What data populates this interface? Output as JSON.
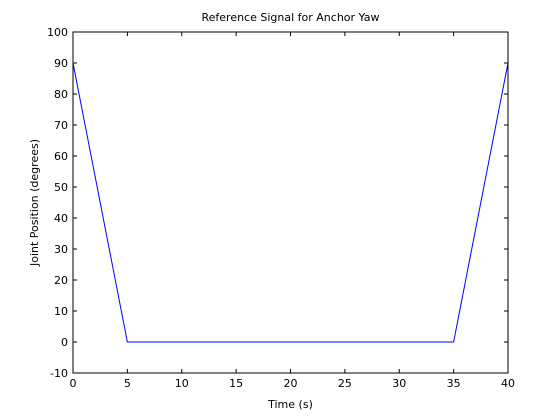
{
  "chart_data": {
    "type": "line",
    "title": "Reference Signal for Anchor Yaw",
    "xlabel": "Time (s)",
    "ylabel": "Joint Position (degrees)",
    "xlim": [
      0,
      40
    ],
    "ylim": [
      -10,
      100
    ],
    "xticks": [
      0,
      5,
      10,
      15,
      20,
      25,
      30,
      35,
      40
    ],
    "yticks": [
      -10,
      0,
      10,
      20,
      30,
      40,
      50,
      60,
      70,
      80,
      90,
      100
    ],
    "grid": false,
    "series": [
      {
        "color": "#0000ff",
        "x": [
          0,
          5,
          35,
          40
        ],
        "y": [
          90,
          0,
          0,
          90
        ]
      }
    ]
  }
}
